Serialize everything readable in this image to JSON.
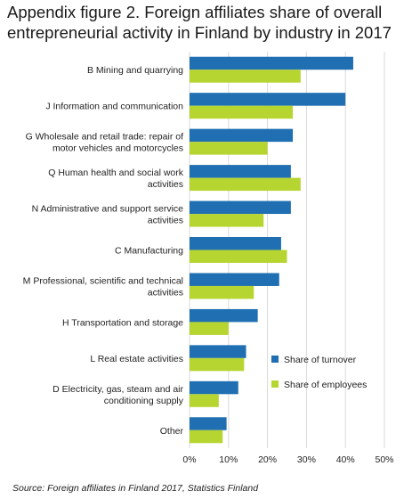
{
  "title_lines": [
    "Appendix figure 2. Foreign affiliates share of overall",
    "entrepreneurial activity in Finland by industry in 2017"
  ],
  "source": "Source: Foreign affiliates in Finland 2017, Statistics Finland",
  "colors": {
    "turnover": "#1f6fb2",
    "employees": "#b6d531",
    "grid": "#d9d9d9"
  },
  "chart_data": {
    "type": "bar",
    "orientation": "horizontal",
    "categories": [
      [
        "B Mining and quarrying"
      ],
      [
        "J Information and communication"
      ],
      [
        "G Wholesale and retail trade: repair of",
        "motor vehicles and motorcycles"
      ],
      [
        "Q Human health and social work",
        "activities"
      ],
      [
        "N Administrative and support service",
        "activities"
      ],
      [
        "C Manufacturing"
      ],
      [
        "M Professional, scientific and technical",
        "activities"
      ],
      [
        "H Transportation and storage"
      ],
      [
        "L Real estate activities"
      ],
      [
        "D Electricity, gas, steam and air",
        "conditioning supply"
      ],
      [
        "Other"
      ]
    ],
    "series": [
      {
        "name": "Share of turnover",
        "values": [
          42,
          40,
          26.5,
          26,
          26,
          23.5,
          23,
          17.5,
          14.5,
          12.5,
          9.5
        ]
      },
      {
        "name": "Share of employees",
        "values": [
          28.5,
          26.5,
          20,
          28.5,
          19,
          25,
          16.5,
          10,
          14,
          7.5,
          8.5
        ]
      }
    ],
    "xlim": [
      0,
      50
    ],
    "xticks": [
      "0%",
      "10%",
      "20%",
      "30%",
      "40%",
      "50%"
    ],
    "grid": true,
    "legend_position": "right"
  }
}
